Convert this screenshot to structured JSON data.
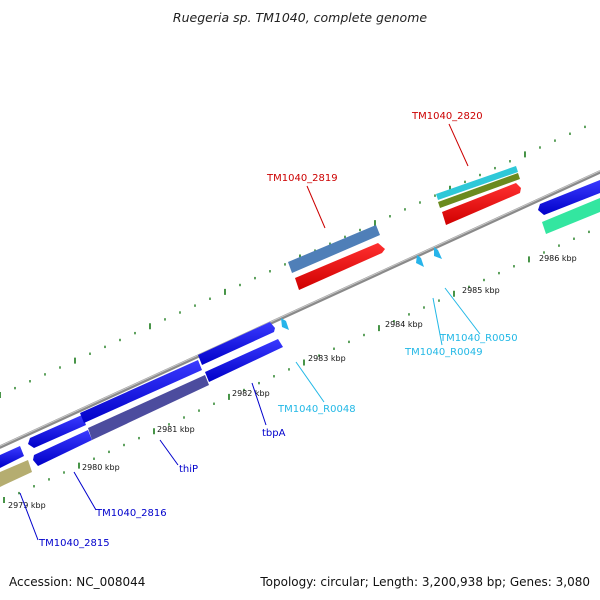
{
  "title": "Ruegeria sp. TM1040, complete genome",
  "footer": {
    "accession": "Accession: NC_008044",
    "topology": "Topology: circular; Length: 3,200,938 bp; Genes: 3,080"
  },
  "colors": {
    "backbone": "#8a8a8a",
    "dots": "#1a7a1a",
    "label_red": "#cc0000",
    "label_blue": "#0000cc",
    "label_cyan": "#22b8e6"
  },
  "ticks": [
    {
      "label": "2979 kbp"
    },
    {
      "label": "2980 kbp"
    },
    {
      "label": "2981 kbp"
    },
    {
      "label": "2982 kbp"
    },
    {
      "label": "2983 kbp"
    },
    {
      "label": "2984 kbp"
    },
    {
      "label": "2985 kbp"
    },
    {
      "label": "2986 kbp"
    }
  ],
  "gene_labels": [
    {
      "name": "TM1040_2815",
      "kind": "blue"
    },
    {
      "name": "TM1040_2816",
      "kind": "blue"
    },
    {
      "name": "thiP",
      "kind": "blue"
    },
    {
      "name": "tbpA",
      "kind": "blue"
    },
    {
      "name": "TM1040_R0048",
      "kind": "cyan"
    },
    {
      "name": "TM1040_R0049",
      "kind": "cyan"
    },
    {
      "name": "TM1040_R0050",
      "kind": "cyan"
    },
    {
      "name": "TM1040_2819",
      "kind": "red"
    },
    {
      "name": "TM1040_2820",
      "kind": "red"
    }
  ]
}
